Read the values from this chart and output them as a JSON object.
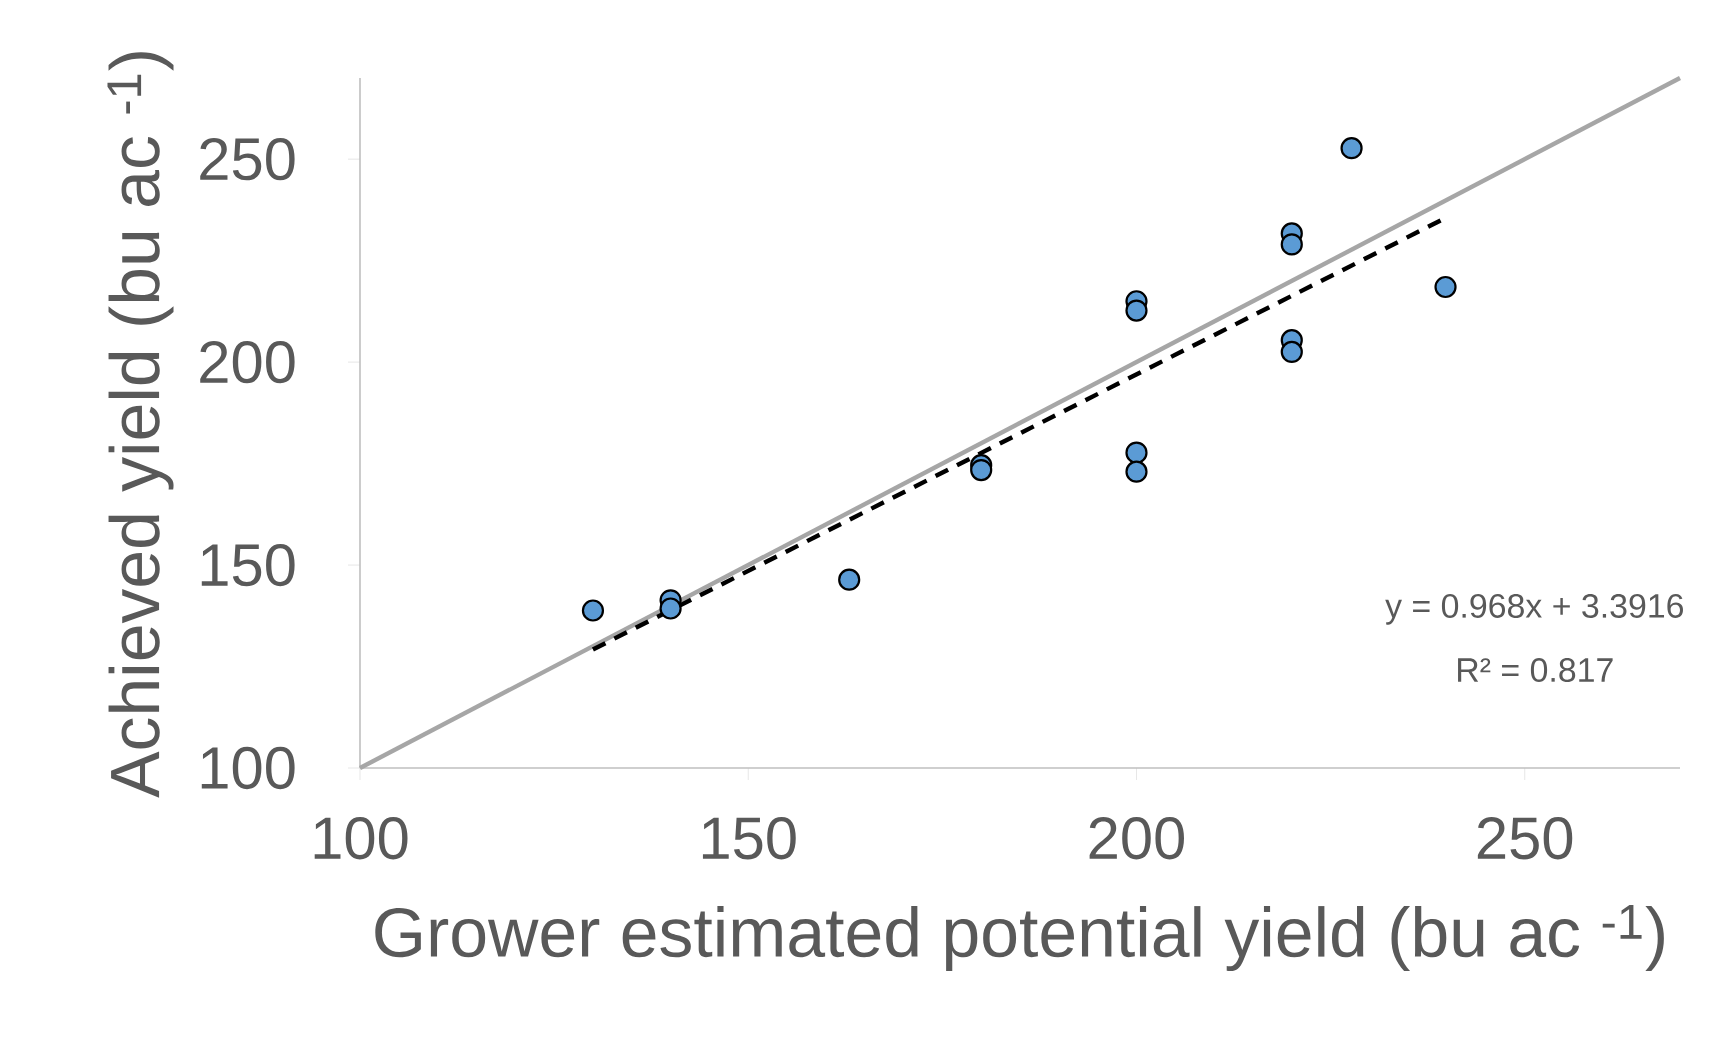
{
  "chart_data": {
    "type": "scatter",
    "xlabel": "Grower estimated potential yield (bu ac $^{-1}$)",
    "ylabel": "Achieved yield (bu ac $^{-1}$)",
    "xlim": [
      100,
      270
    ],
    "ylim": [
      100,
      270
    ],
    "xticks": [
      100,
      150,
      200,
      250
    ],
    "yticks": [
      100,
      150,
      200,
      250
    ],
    "grid": false,
    "annotations": [
      "y = 0.968x + 3.3916",
      "R² = 0.817"
    ],
    "series": [
      {
        "type": "line",
        "color": "#a6a6a6",
        "line_style": "solid",
        "marker": "none",
        "x": [
          100,
          270
        ],
        "values": [
          100,
          270
        ]
      },
      {
        "type": "line",
        "color": "#000000",
        "line_style": "dashed",
        "marker": "none",
        "x": [
          130,
          240
        ],
        "values": [
          129.2,
          235.7
        ]
      },
      {
        "color": "#5b9bd5",
        "marker": "circle",
        "x": [
          130,
          140,
          140,
          163,
          180,
          180,
          200,
          200,
          200,
          200,
          220,
          220,
          220,
          220,
          227.7,
          239.8
        ],
        "values": [
          138.8,
          141.3,
          139.3,
          146.4,
          174.6,
          173.4,
          215,
          212.7,
          177.7,
          173,
          231.7,
          229,
          205.4,
          202.5,
          252.7,
          218.5
        ]
      }
    ]
  }
}
